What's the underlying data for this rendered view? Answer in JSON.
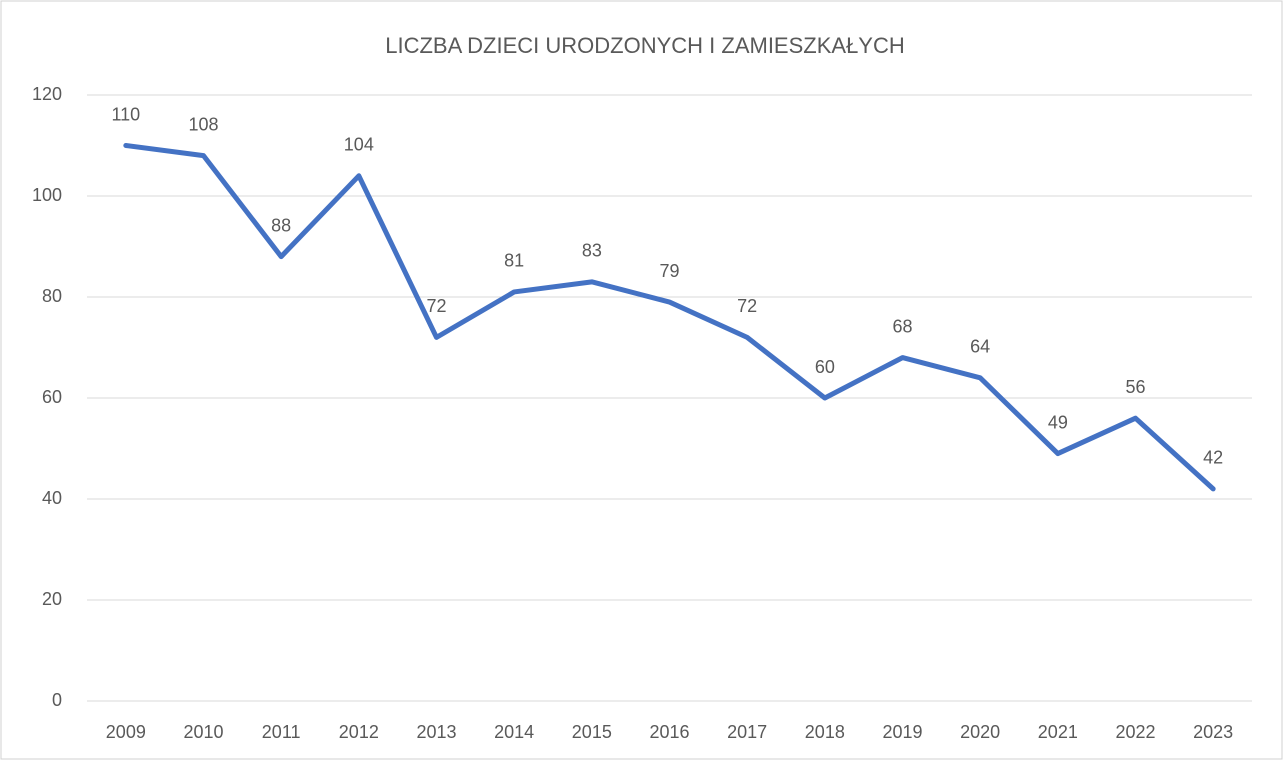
{
  "chart_data": {
    "type": "line",
    "title": "LICZBA DZIECI URODZONYCH I ZAMIESZKAŁYCH",
    "categories": [
      "2009",
      "2010",
      "2011",
      "2012",
      "2013",
      "2014",
      "2015",
      "2016",
      "2017",
      "2018",
      "2019",
      "2020",
      "2021",
      "2022",
      "2023"
    ],
    "values": [
      110,
      108,
      88,
      104,
      72,
      81,
      83,
      79,
      72,
      60,
      68,
      64,
      49,
      56,
      42
    ],
    "color": "#4472c4",
    "ylim": [
      0,
      120
    ],
    "yticks": [
      0,
      20,
      40,
      60,
      80,
      100,
      120
    ],
    "grid": true
  }
}
